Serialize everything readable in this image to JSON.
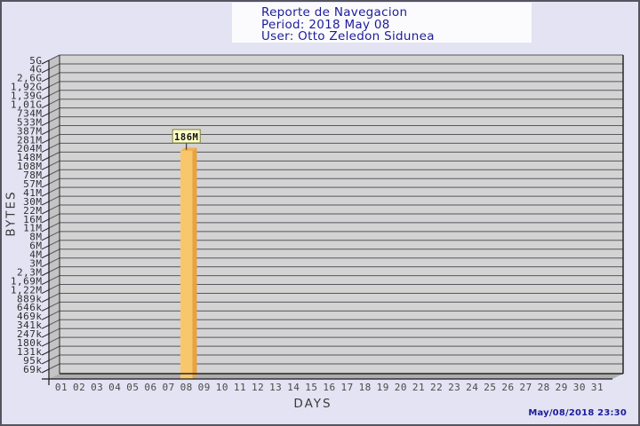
{
  "header": {
    "title": "Reporte de Navegacion",
    "period": "Period: 2018 May 08",
    "user": "User: Otto Zeledon Sidunea"
  },
  "footer": {
    "timestamp": "May/08/2018 23:30"
  },
  "colors": {
    "title_text": "#1c1c9c",
    "page_bg": "#e3e3f3",
    "plot_bg": "#d3d3d3",
    "wall": "#c4c4c4",
    "floor": "#adadad",
    "grid": "#56565e",
    "edge": "#26262a",
    "axis": "#1a1a1e",
    "bar_front": "#f9c76b",
    "bar_top": "#f2b254",
    "bar_side": "#e9a23d",
    "annotation_bg": "#ffffc9",
    "annotation_border": "#80803a"
  },
  "chart_data": {
    "type": "bar",
    "title": "Reporte de Navegacion",
    "subtitle": [
      "Period: 2018 May 08",
      "User: Otto Zeledon Sidunea"
    ],
    "xlabel": "DAYS",
    "ylabel": "BYTES",
    "y_scale": "log",
    "grid": true,
    "style": "3d-bar",
    "y_ticks": [
      "5G",
      "4G",
      "2,6G",
      "1,92G",
      "1,39G",
      "1,01G",
      "734M",
      "533M",
      "387M",
      "281M",
      "204M",
      "148M",
      "108M",
      "78M",
      "57M",
      "41M",
      "30M",
      "22M",
      "16M",
      "11M",
      "8M",
      "6M",
      "4M",
      "3M",
      "2,3M",
      "1,69M",
      "1,22M",
      "889k",
      "646k",
      "469k",
      "341k",
      "247k",
      "180k",
      "131k",
      "95k",
      "69k"
    ],
    "categories": [
      "01",
      "02",
      "03",
      "04",
      "05",
      "06",
      "07",
      "08",
      "09",
      "10",
      "11",
      "12",
      "13",
      "14",
      "15",
      "16",
      "17",
      "18",
      "19",
      "20",
      "21",
      "22",
      "23",
      "24",
      "25",
      "26",
      "27",
      "28",
      "29",
      "30",
      "31"
    ],
    "series": [
      {
        "name": "bytes",
        "values": [
          0,
          0,
          0,
          0,
          0,
          0,
          0,
          186000000,
          0,
          0,
          0,
          0,
          0,
          0,
          0,
          0,
          0,
          0,
          0,
          0,
          0,
          0,
          0,
          0,
          0,
          0,
          0,
          0,
          0,
          0,
          0
        ]
      }
    ],
    "bars": [
      {
        "day": "08",
        "label": "186M",
        "bytes": 186000000
      }
    ]
  }
}
